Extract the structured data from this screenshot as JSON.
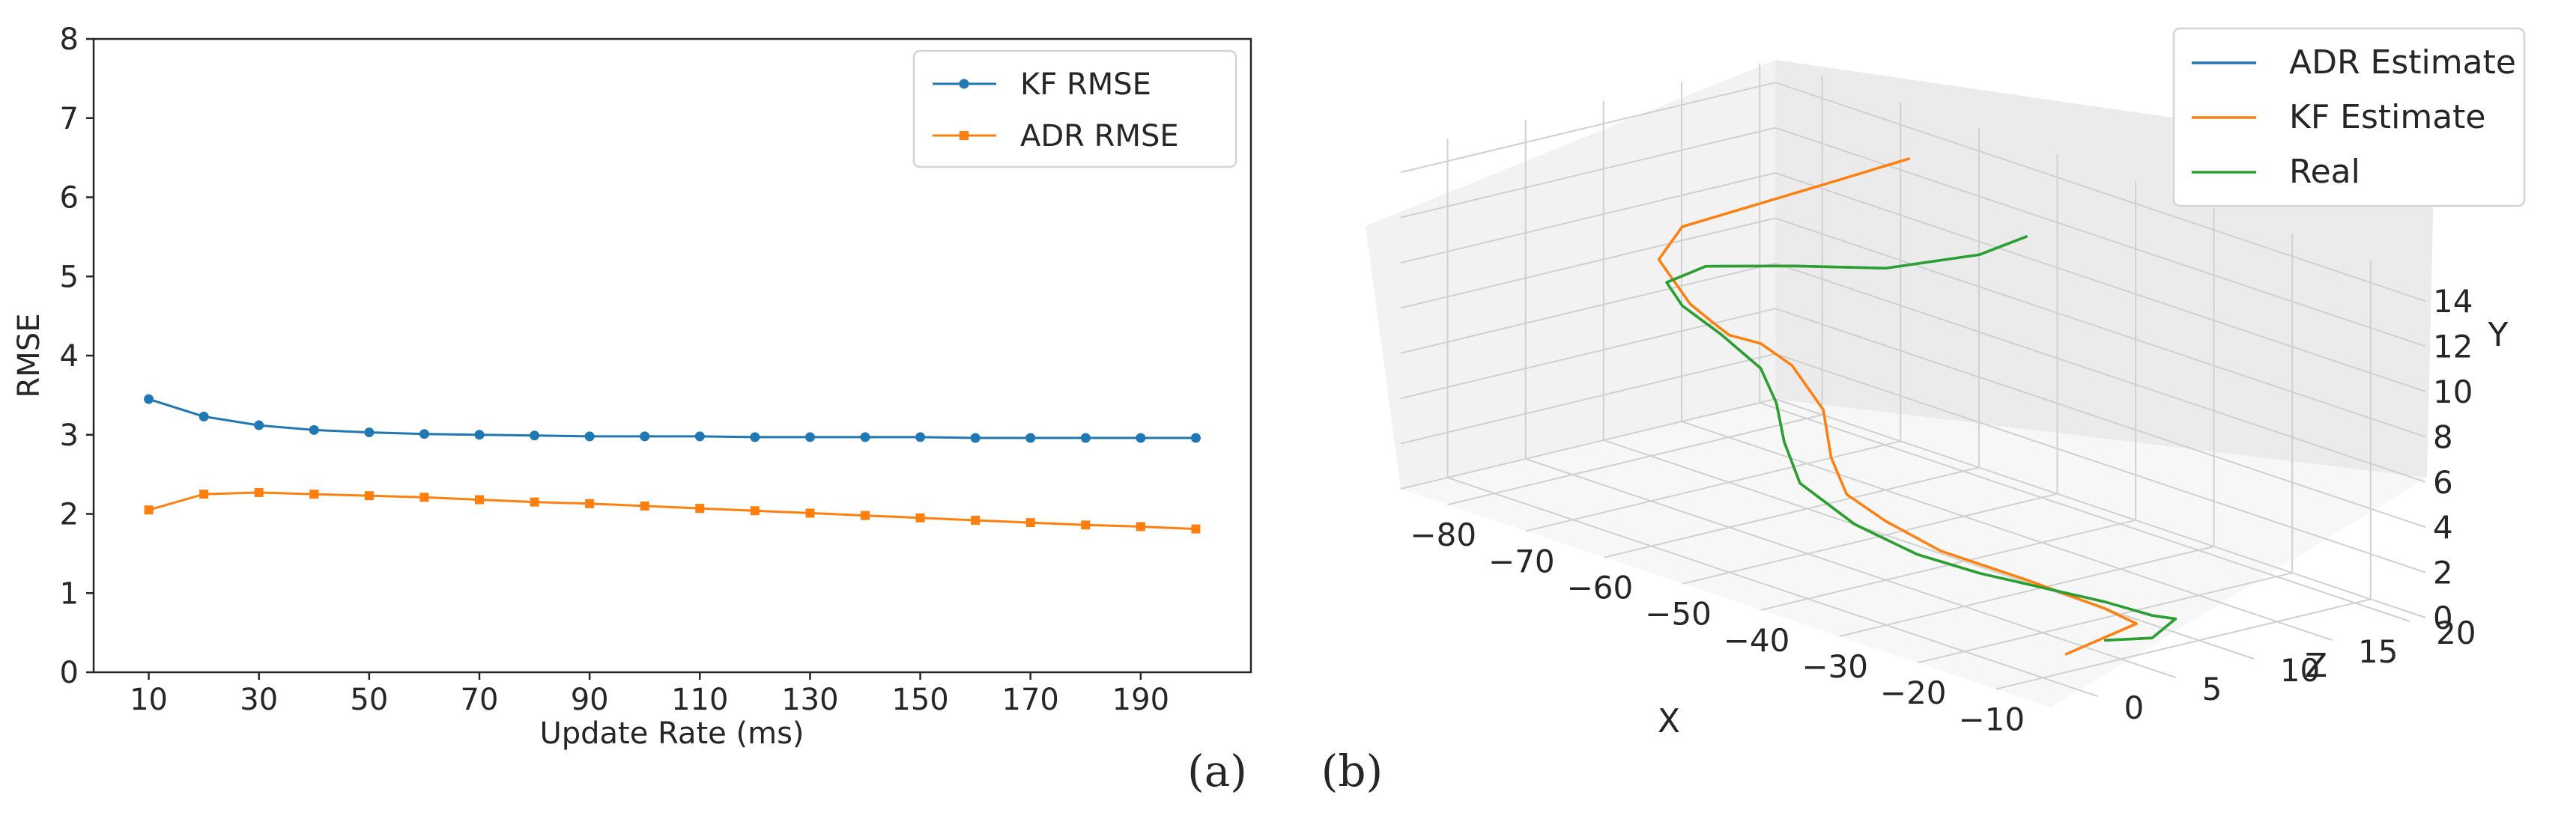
{
  "chart_data": [
    {
      "type": "line",
      "panel_label": "(a)",
      "title": "",
      "xlabel": "Update Rate (ms)",
      "ylabel": "RMSE",
      "xlim": [
        0,
        210
      ],
      "ylim": [
        0,
        8
      ],
      "x_ticks": [
        "10",
        "30",
        "50",
        "70",
        "90",
        "110",
        "130",
        "150",
        "170",
        "190"
      ],
      "x_tick_values": [
        10,
        30,
        50,
        70,
        90,
        110,
        130,
        150,
        170,
        190
      ],
      "y_ticks": [
        "0",
        "1",
        "2",
        "3",
        "4",
        "5",
        "6",
        "7",
        "8"
      ],
      "y_tick_values": [
        0,
        1,
        2,
        3,
        4,
        5,
        6,
        7,
        8
      ],
      "x": [
        10,
        20,
        30,
        40,
        50,
        60,
        70,
        80,
        90,
        100,
        110,
        120,
        130,
        140,
        150,
        160,
        170,
        180,
        190,
        200
      ],
      "legend_position": "top-right",
      "series": [
        {
          "name": "KF RMSE",
          "color": "#1f77b4",
          "marker": "circle",
          "values": [
            3.45,
            3.23,
            3.12,
            3.06,
            3.03,
            3.01,
            3.0,
            2.99,
            2.98,
            2.98,
            2.98,
            2.97,
            2.97,
            2.97,
            2.97,
            2.96,
            2.96,
            2.96,
            2.96,
            2.96
          ]
        },
        {
          "name": "ADR RMSE",
          "color": "#ff7f0e",
          "marker": "square",
          "values": [
            2.05,
            2.25,
            2.27,
            2.25,
            2.23,
            2.21,
            2.18,
            2.15,
            2.13,
            2.1,
            2.07,
            2.04,
            2.01,
            1.98,
            1.95,
            1.92,
            1.89,
            1.86,
            1.84,
            1.81
          ]
        }
      ]
    },
    {
      "type": "line3d",
      "panel_label": "(b)",
      "title": "",
      "xlabel": "X",
      "ylabel": "Y",
      "zlabel": "Z",
      "x_ticks": [
        "−80",
        "−70",
        "−60",
        "−50",
        "−40",
        "−30",
        "−20",
        "−10"
      ],
      "x_tick_values": [
        -80,
        -70,
        -60,
        -50,
        -40,
        -30,
        -20,
        -10
      ],
      "y_ticks": [
        "0",
        "2",
        "4",
        "6",
        "8",
        "10",
        "12",
        "14"
      ],
      "y_tick_values": [
        0,
        2,
        4,
        6,
        8,
        10,
        12,
        14
      ],
      "z_ticks": [
        "0",
        "5",
        "10",
        "15",
        "20"
      ],
      "z_tick_values": [
        0,
        5,
        10,
        15,
        20
      ],
      "xlim": [
        -86,
        -3
      ],
      "ylim": [
        0,
        15
      ],
      "zlim": [
        -3,
        21
      ],
      "legend_position": "top-right",
      "series": [
        {
          "name": "ADR Estimate",
          "color": "#1f77b4",
          "points": [
            [
              -10,
              1.0,
              4
            ],
            [
              -8,
              1.0,
              6
            ],
            [
              -9,
              1.4,
              8
            ],
            [
              -12,
              1.2,
              8
            ],
            [
              -18,
              1.1,
              8
            ],
            [
              -24,
              1.2,
              7
            ],
            [
              -30,
              1.3,
              6
            ],
            [
              -36,
              1.6,
              5
            ],
            [
              -42,
              2.4,
              4
            ],
            [
              -47,
              3.8,
              3
            ],
            [
              -49,
              5.4,
              3
            ],
            [
              -50,
              7.0,
              3
            ],
            [
              -52,
              8.3,
              3
            ],
            [
              -57,
              9.2,
              3
            ],
            [
              -62,
              9.9,
              3
            ],
            [
              -66,
              10.3,
              4
            ],
            [
              -65,
              10.8,
              6
            ],
            [
              -58,
              11.3,
              8
            ],
            [
              -50,
              11.8,
              10
            ],
            [
              -44,
              12.6,
              13
            ],
            [
              -42,
              13.3,
              15
            ]
          ]
        },
        {
          "name": "KF Estimate",
          "color": "#ff7f0e",
          "points": [
            [
              -11,
              0.6,
              2
            ],
            [
              -12,
              1.0,
              7
            ],
            [
              -16,
              1.2,
              7
            ],
            [
              -24,
              1.7,
              6
            ],
            [
              -33,
              2.1,
              5
            ],
            [
              -40,
              2.6,
              5
            ],
            [
              -43,
              3.6,
              4
            ],
            [
              -45,
              5.0,
              4
            ],
            [
              -46,
              7.0,
              4
            ],
            [
              -50,
              8.5,
              4
            ],
            [
              -54,
              9.0,
              4
            ],
            [
              -58,
              8.9,
              4
            ],
            [
              -60,
              9.2,
              4
            ],
            [
              -63,
              9.7,
              4
            ],
            [
              -67,
              11.2,
              4
            ],
            [
              -66,
              12.6,
              5
            ],
            [
              -60,
              14.0,
              7
            ],
            [
              -56,
              15.0,
              10
            ],
            [
              -55,
              15.4,
              14
            ]
          ]
        },
        {
          "name": "Real",
          "color": "#2ca02c",
          "points": [
            [
              -10,
              1.0,
              4
            ],
            [
              -8,
              1.0,
              6
            ],
            [
              -9,
              1.4,
              8
            ],
            [
              -12,
              1.2,
              8
            ],
            [
              -18,
              1.1,
              8
            ],
            [
              -24,
              1.2,
              7
            ],
            [
              -30,
              1.3,
              6
            ],
            [
              -36,
              1.6,
              5
            ],
            [
              -42,
              2.4,
              4
            ],
            [
              -47,
              3.8,
              3
            ],
            [
              -49,
              5.4,
              3
            ],
            [
              -50,
              7.0,
              3
            ],
            [
              -52,
              8.3,
              3
            ],
            [
              -57,
              9.2,
              3
            ],
            [
              -62,
              9.9,
              3
            ],
            [
              -66,
              10.3,
              4
            ],
            [
              -65,
              10.8,
              6
            ],
            [
              -58,
              11.3,
              8
            ],
            [
              -50,
              11.8,
              10
            ],
            [
              -44,
              12.6,
              13
            ],
            [
              -42,
              13.3,
              15
            ]
          ]
        }
      ]
    }
  ]
}
